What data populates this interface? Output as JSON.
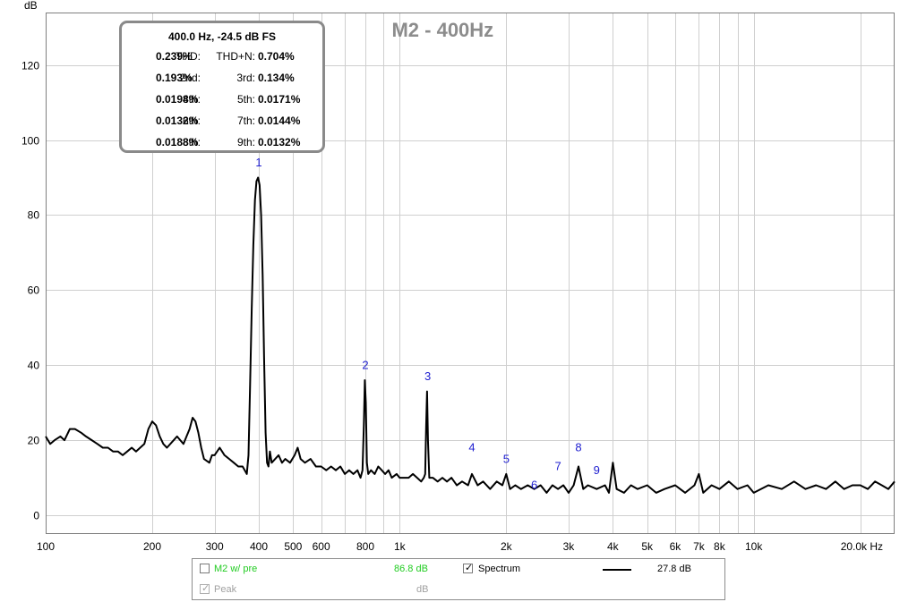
{
  "chart_data": {
    "type": "line",
    "title": "M2 - 400Hz",
    "ylabel": "dB",
    "xlabel": "Hz",
    "xscale": "log",
    "xlim": [
      100,
      25000
    ],
    "ylim": [
      -5,
      134
    ],
    "y_ticks": [
      0,
      20,
      40,
      60,
      80,
      100,
      120
    ],
    "x_ticks": [
      {
        "v": 100,
        "label": "100"
      },
      {
        "v": 200,
        "label": "200"
      },
      {
        "v": 300,
        "label": "300"
      },
      {
        "v": 400,
        "label": "400"
      },
      {
        "v": 500,
        "label": "500"
      },
      {
        "v": 600,
        "label": "600"
      },
      {
        "v": 800,
        "label": "800"
      },
      {
        "v": 1000,
        "label": "1k"
      },
      {
        "v": 2000,
        "label": "2k"
      },
      {
        "v": 3000,
        "label": "3k"
      },
      {
        "v": 4000,
        "label": "4k"
      },
      {
        "v": 5000,
        "label": "5k"
      },
      {
        "v": 6000,
        "label": "6k"
      },
      {
        "v": 7000,
        "label": "7k"
      },
      {
        "v": 8000,
        "label": "8k"
      },
      {
        "v": 10000,
        "label": "10k"
      },
      {
        "v": 20000,
        "label": "20.0k Hz"
      }
    ],
    "grid": true,
    "series": [
      {
        "name": "Spectrum",
        "color": "#000000",
        "points": [
          [
            100,
            21
          ],
          [
            103,
            19
          ],
          [
            106,
            20
          ],
          [
            110,
            21
          ],
          [
            113,
            20
          ],
          [
            117,
            23
          ],
          [
            121,
            23
          ],
          [
            126,
            22
          ],
          [
            130,
            21
          ],
          [
            135,
            20
          ],
          [
            140,
            19
          ],
          [
            145,
            18
          ],
          [
            150,
            18
          ],
          [
            155,
            17
          ],
          [
            160,
            17
          ],
          [
            165,
            16
          ],
          [
            170,
            17
          ],
          [
            175,
            18
          ],
          [
            180,
            17
          ],
          [
            190,
            19
          ],
          [
            195,
            23
          ],
          [
            200,
            25
          ],
          [
            205,
            24
          ],
          [
            210,
            21
          ],
          [
            215,
            19
          ],
          [
            220,
            18
          ],
          [
            230,
            20
          ],
          [
            235,
            21
          ],
          [
            240,
            20
          ],
          [
            245,
            19
          ],
          [
            250,
            21
          ],
          [
            255,
            23
          ],
          [
            260,
            26
          ],
          [
            265,
            25
          ],
          [
            270,
            22
          ],
          [
            275,
            18
          ],
          [
            280,
            15
          ],
          [
            290,
            14
          ],
          [
            295,
            16
          ],
          [
            300,
            16
          ],
          [
            310,
            18
          ],
          [
            315,
            17
          ],
          [
            320,
            16
          ],
          [
            330,
            15
          ],
          [
            340,
            14
          ],
          [
            350,
            13
          ],
          [
            360,
            13
          ],
          [
            365,
            12
          ],
          [
            370,
            11
          ],
          [
            374,
            16
          ],
          [
            378,
            35
          ],
          [
            382,
            55
          ],
          [
            386,
            72
          ],
          [
            390,
            84
          ],
          [
            394,
            89
          ],
          [
            398,
            90
          ],
          [
            402,
            88
          ],
          [
            406,
            80
          ],
          [
            410,
            64
          ],
          [
            414,
            42
          ],
          [
            418,
            22
          ],
          [
            422,
            14
          ],
          [
            426,
            13
          ],
          [
            430,
            17
          ],
          [
            435,
            14
          ],
          [
            445,
            15
          ],
          [
            455,
            16
          ],
          [
            465,
            14
          ],
          [
            475,
            15
          ],
          [
            490,
            14
          ],
          [
            505,
            16
          ],
          [
            515,
            18
          ],
          [
            525,
            15
          ],
          [
            540,
            14
          ],
          [
            560,
            15
          ],
          [
            580,
            13
          ],
          [
            600,
            13
          ],
          [
            620,
            12
          ],
          [
            640,
            13
          ],
          [
            660,
            12
          ],
          [
            680,
            13
          ],
          [
            700,
            11
          ],
          [
            720,
            12
          ],
          [
            740,
            11
          ],
          [
            760,
            12
          ],
          [
            775,
            10
          ],
          [
            785,
            12
          ],
          [
            792,
            24
          ],
          [
            797,
            36
          ],
          [
            802,
            30
          ],
          [
            808,
            14
          ],
          [
            815,
            11
          ],
          [
            830,
            12
          ],
          [
            850,
            11
          ],
          [
            870,
            13
          ],
          [
            890,
            12
          ],
          [
            910,
            11
          ],
          [
            930,
            12
          ],
          [
            950,
            10
          ],
          [
            980,
            11
          ],
          [
            1000,
            10
          ],
          [
            1030,
            10
          ],
          [
            1060,
            10
          ],
          [
            1090,
            11
          ],
          [
            1120,
            10
          ],
          [
            1150,
            9
          ],
          [
            1170,
            10
          ],
          [
            1180,
            11
          ],
          [
            1188,
            24
          ],
          [
            1195,
            33
          ],
          [
            1202,
            20
          ],
          [
            1212,
            10
          ],
          [
            1240,
            10
          ],
          [
            1280,
            9
          ],
          [
            1320,
            10
          ],
          [
            1360,
            9
          ],
          [
            1400,
            10
          ],
          [
            1450,
            8
          ],
          [
            1500,
            9
          ],
          [
            1560,
            8
          ],
          [
            1600,
            11
          ],
          [
            1660,
            8
          ],
          [
            1720,
            9
          ],
          [
            1800,
            7
          ],
          [
            1880,
            9
          ],
          [
            1950,
            8
          ],
          [
            2000,
            11
          ],
          [
            2050,
            7
          ],
          [
            2120,
            8
          ],
          [
            2200,
            7
          ],
          [
            2300,
            8
          ],
          [
            2400,
            7
          ],
          [
            2500,
            8
          ],
          [
            2600,
            6
          ],
          [
            2700,
            8
          ],
          [
            2800,
            7
          ],
          [
            2900,
            8
          ],
          [
            3000,
            6
          ],
          [
            3100,
            8
          ],
          [
            3200,
            13
          ],
          [
            3300,
            7
          ],
          [
            3400,
            8
          ],
          [
            3600,
            7
          ],
          [
            3800,
            8
          ],
          [
            3900,
            6
          ],
          [
            4000,
            14
          ],
          [
            4100,
            7
          ],
          [
            4300,
            6
          ],
          [
            4500,
            8
          ],
          [
            4700,
            7
          ],
          [
            5000,
            8
          ],
          [
            5300,
            6
          ],
          [
            5600,
            7
          ],
          [
            6000,
            8
          ],
          [
            6400,
            6
          ],
          [
            6800,
            8
          ],
          [
            7000,
            11
          ],
          [
            7200,
            6
          ],
          [
            7600,
            8
          ],
          [
            8000,
            7
          ],
          [
            8500,
            9
          ],
          [
            9000,
            7
          ],
          [
            9600,
            8
          ],
          [
            10000,
            6
          ],
          [
            11000,
            8
          ],
          [
            12000,
            7
          ],
          [
            13000,
            9
          ],
          [
            14000,
            7
          ],
          [
            15000,
            8
          ],
          [
            16000,
            7
          ],
          [
            17000,
            9
          ],
          [
            18000,
            7
          ],
          [
            19000,
            8
          ],
          [
            20000,
            8
          ],
          [
            21000,
            7
          ],
          [
            22000,
            9
          ],
          [
            23000,
            8
          ],
          [
            24000,
            7
          ],
          [
            25000,
            9
          ]
        ]
      }
    ],
    "harmonic_markers": [
      {
        "label": "1",
        "x": 400,
        "y": 93
      },
      {
        "label": "2",
        "x": 800,
        "y": 39
      },
      {
        "label": "3",
        "x": 1200,
        "y": 36
      },
      {
        "label": "4",
        "x": 1600,
        "y": 17
      },
      {
        "label": "5",
        "x": 2000,
        "y": 14
      },
      {
        "label": "6",
        "x": 2400,
        "y": 7
      },
      {
        "label": "7",
        "x": 2800,
        "y": 12
      },
      {
        "label": "8",
        "x": 3200,
        "y": 17
      },
      {
        "label": "9",
        "x": 3600,
        "y": 11
      }
    ]
  },
  "stats": {
    "header": "400.0 Hz, -24.5 dB FS",
    "rows": [
      {
        "k1": "THD:",
        "v1": "0.239%",
        "k2": "THD+N:",
        "v2": "0.704%"
      },
      {
        "k1": "2nd:",
        "v1": "0.193%",
        "k2": "3rd:",
        "v2": "0.134%"
      },
      {
        "k1": "4th:",
        "v1": "0.0198%",
        "k2": "5th:",
        "v2": "0.0171%"
      },
      {
        "k1": "6th:",
        "v1": "0.0132%",
        "k2": "7th:",
        "v2": "0.0144%"
      },
      {
        "k1": "8th:",
        "v1": "0.0188%",
        "k2": "9th:",
        "v2": "0.0132%"
      }
    ]
  },
  "legend": {
    "m2_label": "M2 w/ pre",
    "m2_value": "86.8 dB",
    "m2_checked": false,
    "m2_color": "#22cc22",
    "spectrum_label": "Spectrum",
    "spectrum_value": "27.8 dB",
    "spectrum_checked": true,
    "peak_label": "Peak",
    "peak_value": "dB",
    "peak_checked": true
  }
}
